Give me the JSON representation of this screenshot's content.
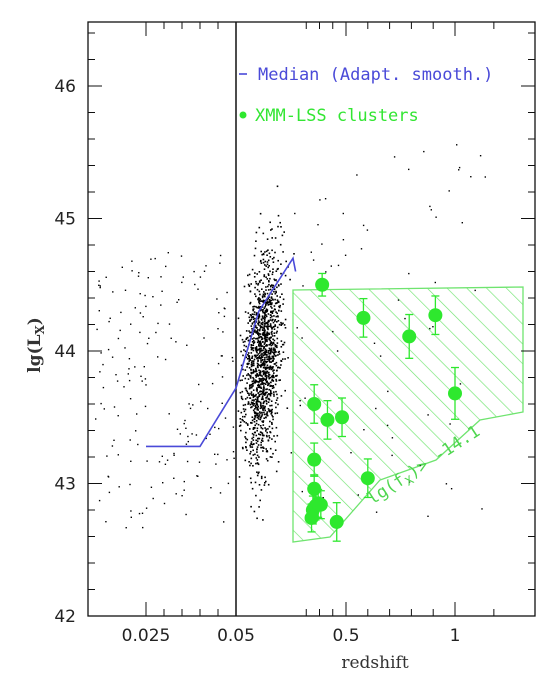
{
  "chart_data": {
    "type": "scatter",
    "xlabel": "redshift",
    "ylabel": "lg(L",
    "ylabel_sub": "X",
    "ylabel_close": ")",
    "ylim": [
      42,
      46.5
    ],
    "x_ticks": [
      {
        "label": "0.025",
        "pos": 0.025
      },
      {
        "label": "0.05",
        "pos": 0.05
      },
      {
        "label": "0.5",
        "pos": 0.5
      },
      {
        "label": "1",
        "pos": 1.0
      }
    ],
    "y_ticks": [
      {
        "label": "42",
        "value": 42
      },
      {
        "label": "43",
        "value": 43
      },
      {
        "label": "44",
        "value": 44
      },
      {
        "label": "45",
        "value": 45
      },
      {
        "label": "46",
        "value": 46
      }
    ],
    "vertical_line_x": 0.05,
    "legend": [
      {
        "label": "Median (Adapt. smooth.)",
        "color": "#4a4ad8",
        "marker": "line"
      },
      {
        "label": "XMM-LSS clusters",
        "color": "#33e633",
        "marker": "dot"
      }
    ],
    "flux_limit_label": "lg(f",
    "flux_limit_sub": "X",
    "flux_limit_value": ")> -14.1",
    "colors": {
      "median": "#4a4ad8",
      "clusters": "#2ee82e",
      "hatch": "#6fe46f",
      "field": "#000000"
    },
    "series": [
      {
        "name": "Median (Adapt. smooth.)",
        "points": [
          {
            "x": 0.025,
            "y": 43.28
          },
          {
            "x": 0.04,
            "y": 43.28
          },
          {
            "x": 0.05,
            "y": 43.72
          },
          {
            "x": 0.07,
            "y": 44.3
          },
          {
            "x": 0.1,
            "y": 44.7
          },
          {
            "x": 0.12,
            "y": 44.6
          }
        ]
      },
      {
        "name": "XMM-LSS clusters",
        "points": [
          {
            "x": 0.32,
            "y": 44.5,
            "err": 0.04
          },
          {
            "x": 0.58,
            "y": 44.25,
            "err": 0.1
          },
          {
            "x": 0.79,
            "y": 44.11,
            "err": 0.12
          },
          {
            "x": 0.91,
            "y": 44.27,
            "err": 0.1
          },
          {
            "x": 0.26,
            "y": 43.6,
            "err": 0.1
          },
          {
            "x": 0.36,
            "y": 43.48,
            "err": 0.1
          },
          {
            "x": 0.47,
            "y": 43.5,
            "err": 0.1
          },
          {
            "x": 1.0,
            "y": 43.68,
            "err": 0.15
          },
          {
            "x": 0.26,
            "y": 43.18,
            "err": 0.08
          },
          {
            "x": 0.6,
            "y": 43.04,
            "err": 0.1
          },
          {
            "x": 0.26,
            "y": 42.96,
            "err": 0.06
          },
          {
            "x": 0.25,
            "y": 42.8,
            "err": 0.06
          },
          {
            "x": 0.27,
            "y": 42.83,
            "err": 0.06
          },
          {
            "x": 0.24,
            "y": 42.74,
            "err": 0.06
          },
          {
            "x": 0.29,
            "y": 42.85,
            "err": 0.06
          },
          {
            "x": 0.31,
            "y": 42.84,
            "err": 0.06
          },
          {
            "x": 0.43,
            "y": 42.71,
            "err": 0.1
          }
        ]
      }
    ]
  }
}
